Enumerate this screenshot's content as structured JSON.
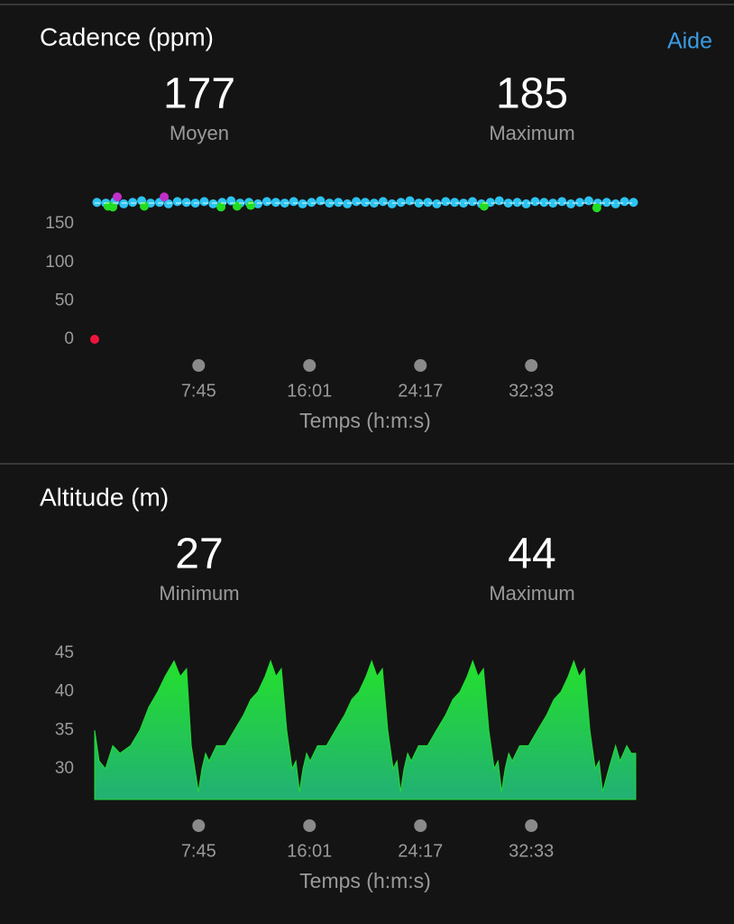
{
  "help_link": "Aide",
  "chart_data": [
    {
      "type": "scatter",
      "title": "Cadence (ppm)",
      "stats": [
        {
          "value": 177,
          "label": "Moyen"
        },
        {
          "value": 185,
          "label": "Maximum"
        }
      ],
      "x_label": "Temps (h:m:s)",
      "xlim": [
        0,
        2420
      ],
      "ylim": [
        0,
        190
      ],
      "xticks": [
        {
          "value": 465,
          "label": "7:45"
        },
        {
          "value": 961,
          "label": "16:01"
        },
        {
          "value": 1457,
          "label": "24:17"
        },
        {
          "value": 1953,
          "label": "32:33"
        }
      ],
      "yticks": [
        0,
        50,
        100,
        150
      ],
      "series": [
        {
          "color": "#2cc4f2",
          "x": [
            10,
            50,
            90,
            130,
            170,
            210,
            250,
            290,
            330,
            370,
            410,
            450,
            490,
            530,
            570,
            610,
            650,
            690,
            730,
            770,
            810,
            850,
            890,
            930,
            970,
            1010,
            1050,
            1090,
            1130,
            1170,
            1210,
            1250,
            1290,
            1330,
            1370,
            1410,
            1450,
            1490,
            1530,
            1570,
            1610,
            1650,
            1690,
            1730,
            1770,
            1810,
            1850,
            1890,
            1930,
            1970,
            2010,
            2050,
            2090,
            2130,
            2170,
            2210,
            2250,
            2290,
            2330,
            2370,
            2410
          ],
          "values": [
            178,
            177,
            179,
            176,
            178,
            180,
            177,
            178,
            176,
            179,
            178,
            177,
            179,
            176,
            178,
            180,
            177,
            178,
            176,
            179,
            178,
            177,
            179,
            176,
            178,
            180,
            177,
            178,
            176,
            179,
            178,
            177,
            179,
            176,
            178,
            180,
            177,
            178,
            176,
            179,
            178,
            177,
            179,
            176,
            178,
            180,
            177,
            178,
            176,
            179,
            178,
            177,
            179,
            176,
            178,
            180,
            177,
            178,
            176,
            179,
            178
          ]
        },
        {
          "color": "#22dd22",
          "x": [
            60,
            81,
            222,
            565,
            637,
            698,
            1742,
            2246
          ],
          "values": [
            173,
            172,
            173,
            172,
            173,
            174,
            173,
            171
          ]
        },
        {
          "color": "#c030c8",
          "x": [
            101,
            311
          ],
          "values": [
            185,
            185
          ]
        },
        {
          "color": "#f0143c",
          "x": [
            0
          ],
          "values": [
            0
          ]
        }
      ]
    },
    {
      "type": "area",
      "title": "Altitude (m)",
      "stats": [
        {
          "value": 27,
          "label": "Minimum"
        },
        {
          "value": 44,
          "label": "Maximum"
        }
      ],
      "x_label": "Temps (h:m:s)",
      "xlim": [
        0,
        2420
      ],
      "ylim": [
        26,
        45
      ],
      "xticks": [
        {
          "value": 465,
          "label": "7:45"
        },
        {
          "value": 961,
          "label": "16:01"
        },
        {
          "value": 1457,
          "label": "24:17"
        },
        {
          "value": 1953,
          "label": "32:33"
        }
      ],
      "yticks": [
        30,
        35,
        40,
        45
      ],
      "color": "#22dd33",
      "x": [
        0,
        20,
        48,
        81,
        113,
        161,
        202,
        242,
        282,
        315,
        355,
        383,
        411,
        432,
        464,
        480,
        496,
        512,
        545,
        585,
        625,
        666,
        698,
        730,
        762,
        787,
        811,
        835,
        859,
        883,
        900,
        916,
        932,
        948,
        964,
        997,
        1037,
        1077,
        1118,
        1150,
        1182,
        1214,
        1239,
        1263,
        1287,
        1311,
        1335,
        1352,
        1368,
        1384,
        1400,
        1416,
        1449,
        1489,
        1529,
        1570,
        1602,
        1634,
        1666,
        1691,
        1715,
        1739,
        1763,
        1787,
        1804,
        1820,
        1836,
        1852,
        1868,
        1901,
        1941,
        1981,
        2022,
        2054,
        2086,
        2118,
        2143,
        2167,
        2191,
        2215,
        2239,
        2256,
        2272,
        2300,
        2330,
        2350,
        2380,
        2400,
        2420
      ],
      "values": [
        35,
        31,
        30,
        33,
        32,
        33,
        35,
        38,
        40,
        42,
        44,
        42,
        43,
        33,
        27,
        30,
        32,
        31,
        33,
        33,
        35,
        37,
        39,
        40,
        42,
        44,
        42,
        43,
        35,
        30,
        31,
        27,
        30,
        32,
        31,
        33,
        33,
        35,
        37,
        39,
        40,
        42,
        44,
        42,
        43,
        35,
        30,
        31,
        27,
        30,
        32,
        31,
        33,
        33,
        35,
        37,
        39,
        40,
        42,
        44,
        42,
        43,
        35,
        30,
        31,
        27,
        30,
        32,
        31,
        33,
        33,
        35,
        37,
        39,
        40,
        42,
        44,
        42,
        43,
        35,
        30,
        31,
        27,
        30,
        33,
        31,
        33,
        32,
        32
      ]
    }
  ]
}
